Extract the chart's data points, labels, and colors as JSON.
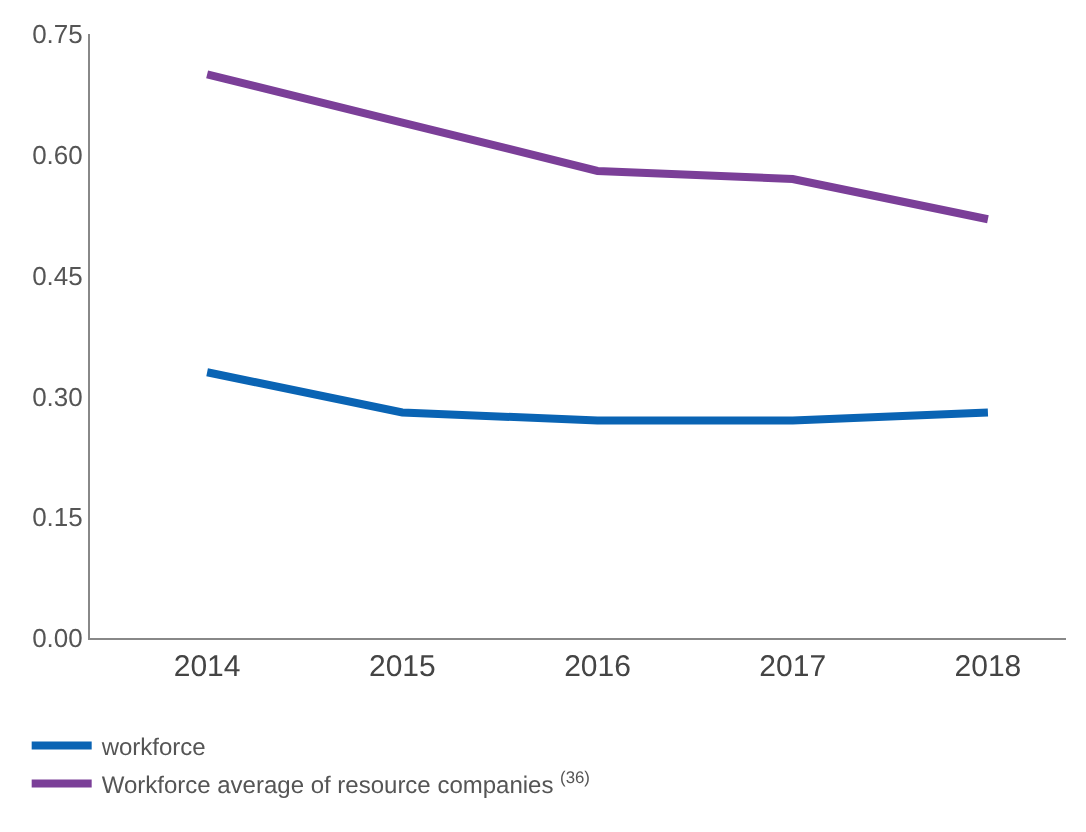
{
  "chart_data": {
    "type": "line",
    "categories": [
      "2014",
      "2015",
      "2016",
      "2017",
      "2018"
    ],
    "series": [
      {
        "name": "workforce",
        "color": "#0a64b4",
        "values": [
          0.33,
          0.28,
          0.27,
          0.27,
          0.28
        ]
      },
      {
        "name": "Workforce average of resource companies $^{(36)}$",
        "color": "#7b3f98",
        "values": [
          0.7,
          0.64,
          0.58,
          0.57,
          0.52
        ]
      }
    ],
    "ylim": [
      0,
      0.75
    ],
    "yticks": [
      {
        "value": 0,
        "label": "0.00"
      },
      {
        "value": 0.15,
        "label": "0.15"
      },
      {
        "value": 0.3,
        "label": "0.30"
      },
      {
        "value": 0.45,
        "label": "0.45"
      },
      {
        "value": 0.6,
        "label": "0.60"
      },
      {
        "value": 0.75,
        "label": "0.75"
      }
    ],
    "legend": "bottom left",
    "marker": "none",
    "line_style": "solid"
  }
}
